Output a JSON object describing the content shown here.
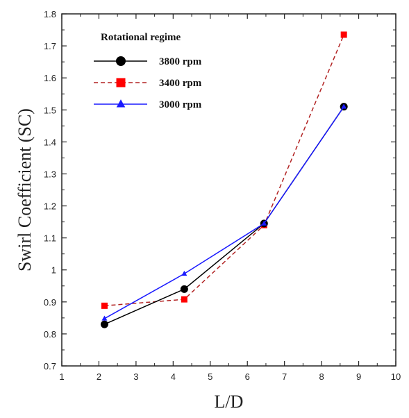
{
  "chart_data": {
    "type": "line",
    "title": "",
    "xlabel": "L/D",
    "ylabel": "Swirl Coefficient (SC)",
    "xlim": [
      1,
      10
    ],
    "ylim": [
      0.7,
      1.8
    ],
    "xticks": [
      1,
      2,
      3,
      4,
      5,
      6,
      7,
      8,
      9,
      10
    ],
    "yticks": [
      0.7,
      0.8,
      0.9,
      1.0,
      1.1,
      1.2,
      1.3,
      1.4,
      1.5,
      1.6,
      1.7,
      1.8
    ],
    "ytick_labels": [
      "0.7",
      "0.8",
      "0.9",
      "1",
      "1.1",
      "1.2",
      "1.3",
      "1.4",
      "1.5",
      "1.6",
      "1.7",
      "1.8"
    ],
    "grid": false,
    "legend": {
      "title": "Rotational regime",
      "position": "top-left"
    },
    "series": [
      {
        "name": "3800 rpm",
        "color": "#000000",
        "marker": "circle",
        "line": "solid",
        "x": [
          2.15,
          4.3,
          6.45,
          8.6
        ],
        "y": [
          0.83,
          0.94,
          1.145,
          1.51
        ]
      },
      {
        "name": "3400 rpm",
        "color": "#ff0000",
        "line_color": "#b22222",
        "marker": "square",
        "line": "dashed",
        "x": [
          2.15,
          4.3,
          6.45,
          8.6
        ],
        "y": [
          0.888,
          0.908,
          1.14,
          1.735
        ]
      },
      {
        "name": "3000 rpm",
        "color": "#1a1aff",
        "marker": "triangle",
        "line": "solid",
        "x": [
          2.15,
          4.3,
          6.45,
          8.6
        ],
        "y": [
          0.848,
          0.988,
          1.145,
          1.51
        ]
      }
    ]
  }
}
